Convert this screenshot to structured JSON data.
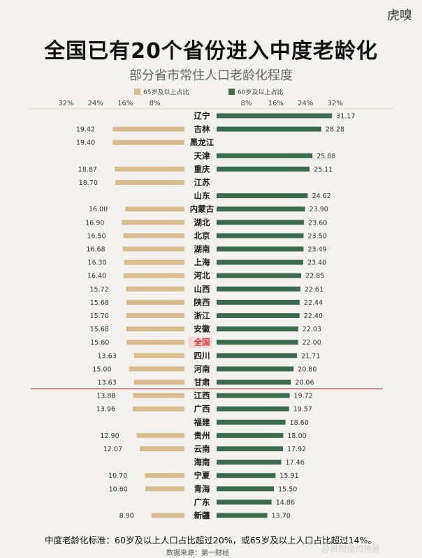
{
  "brand": "虎嗅",
  "title": "全国已有20个省份进入中度老龄化",
  "subtitle": "部分省市常住人口老龄化程度",
  "footnote": "中度老龄化标准：60岁及以上人口占比超过20%，或65岁及以上人口占比超过14%。",
  "source": "数据来源：第一财经",
  "watermark": "@资阳盘的他爸",
  "colors": {
    "series_65": "#d7bd8f",
    "series_60": "#3d6b4f",
    "threshold_line": "#a23b3b",
    "highlight_label": "#d23c3c"
  },
  "chart_data": {
    "type": "bar",
    "orientation": "horizontal-diverging",
    "legend": {
      "placement": "top"
    },
    "left_axis": {
      "ticks": [
        "32%",
        "24%",
        "16%",
        "8%"
      ],
      "range": [
        0,
        32
      ]
    },
    "right_axis": {
      "ticks": [
        "8%",
        "16%",
        "24%",
        "32%"
      ],
      "range": [
        0,
        32
      ]
    },
    "series": [
      {
        "name": "65岁及以上占比",
        "side": "left",
        "values": [
          null,
          19.42,
          19.4,
          null,
          18.87,
          18.7,
          null,
          16.0,
          16.9,
          16.5,
          16.68,
          16.3,
          16.4,
          15.72,
          15.68,
          15.7,
          15.68,
          15.6,
          13.63,
          15.0,
          13.63,
          13.88,
          13.96,
          null,
          12.9,
          12.07,
          null,
          10.7,
          10.6,
          null,
          8.9
        ],
        "labels": [
          "",
          "19.42",
          "19.40",
          "",
          "18.87",
          "18.70",
          "",
          "16.00",
          "16.90",
          "16.50",
          "16.68",
          "16.30",
          "16.40",
          "15.72",
          "15.68",
          "15.70",
          "15.68",
          "15.60",
          "13.63",
          "15.00",
          "13.63",
          "13.88",
          "13.96",
          "",
          "12.90",
          "12.07",
          "",
          "10.70",
          "10.60",
          "",
          "8.90"
        ]
      },
      {
        "name": "60岁及以上占比",
        "side": "right",
        "values": [
          31.17,
          28.28,
          null,
          25.88,
          25.11,
          null,
          24.62,
          23.9,
          23.6,
          23.5,
          23.49,
          23.4,
          22.85,
          22.61,
          22.44,
          22.4,
          22.03,
          22.0,
          21.71,
          20.8,
          20.06,
          19.72,
          19.57,
          18.6,
          18.0,
          17.92,
          17.46,
          15.91,
          15.5,
          14.86,
          13.7
        ],
        "labels": [
          "31.17",
          "28.28",
          "",
          "25.88",
          "25.11",
          "",
          "24.62",
          "23.90",
          "23.60",
          "23.50",
          "23.49",
          "23.40",
          "22.85",
          "22.61",
          "22.44",
          "22.40",
          "22.03",
          "22.00",
          "21.71",
          "20.80",
          "20.06",
          "19.72",
          "19.57",
          "18.60",
          "18.00",
          "17.92",
          "17.46",
          "15.91",
          "15.50",
          "14.86",
          "13.70"
        ]
      }
    ],
    "categories": [
      "辽宁",
      "吉林",
      "黑龙江",
      "天津",
      "重庆",
      "江苏",
      "山东",
      "内蒙古",
      "湖北",
      "北京",
      "湖南",
      "上海",
      "河北",
      "山西",
      "陕西",
      "浙江",
      "安徽",
      "全国",
      "四川",
      "河南",
      "甘肃",
      "江西",
      "广西",
      "福建",
      "贵州",
      "云南",
      "海南",
      "宁夏",
      "青海",
      "广东",
      "新疆"
    ],
    "highlight_category": "全国",
    "threshold_after_category": "甘肃"
  }
}
